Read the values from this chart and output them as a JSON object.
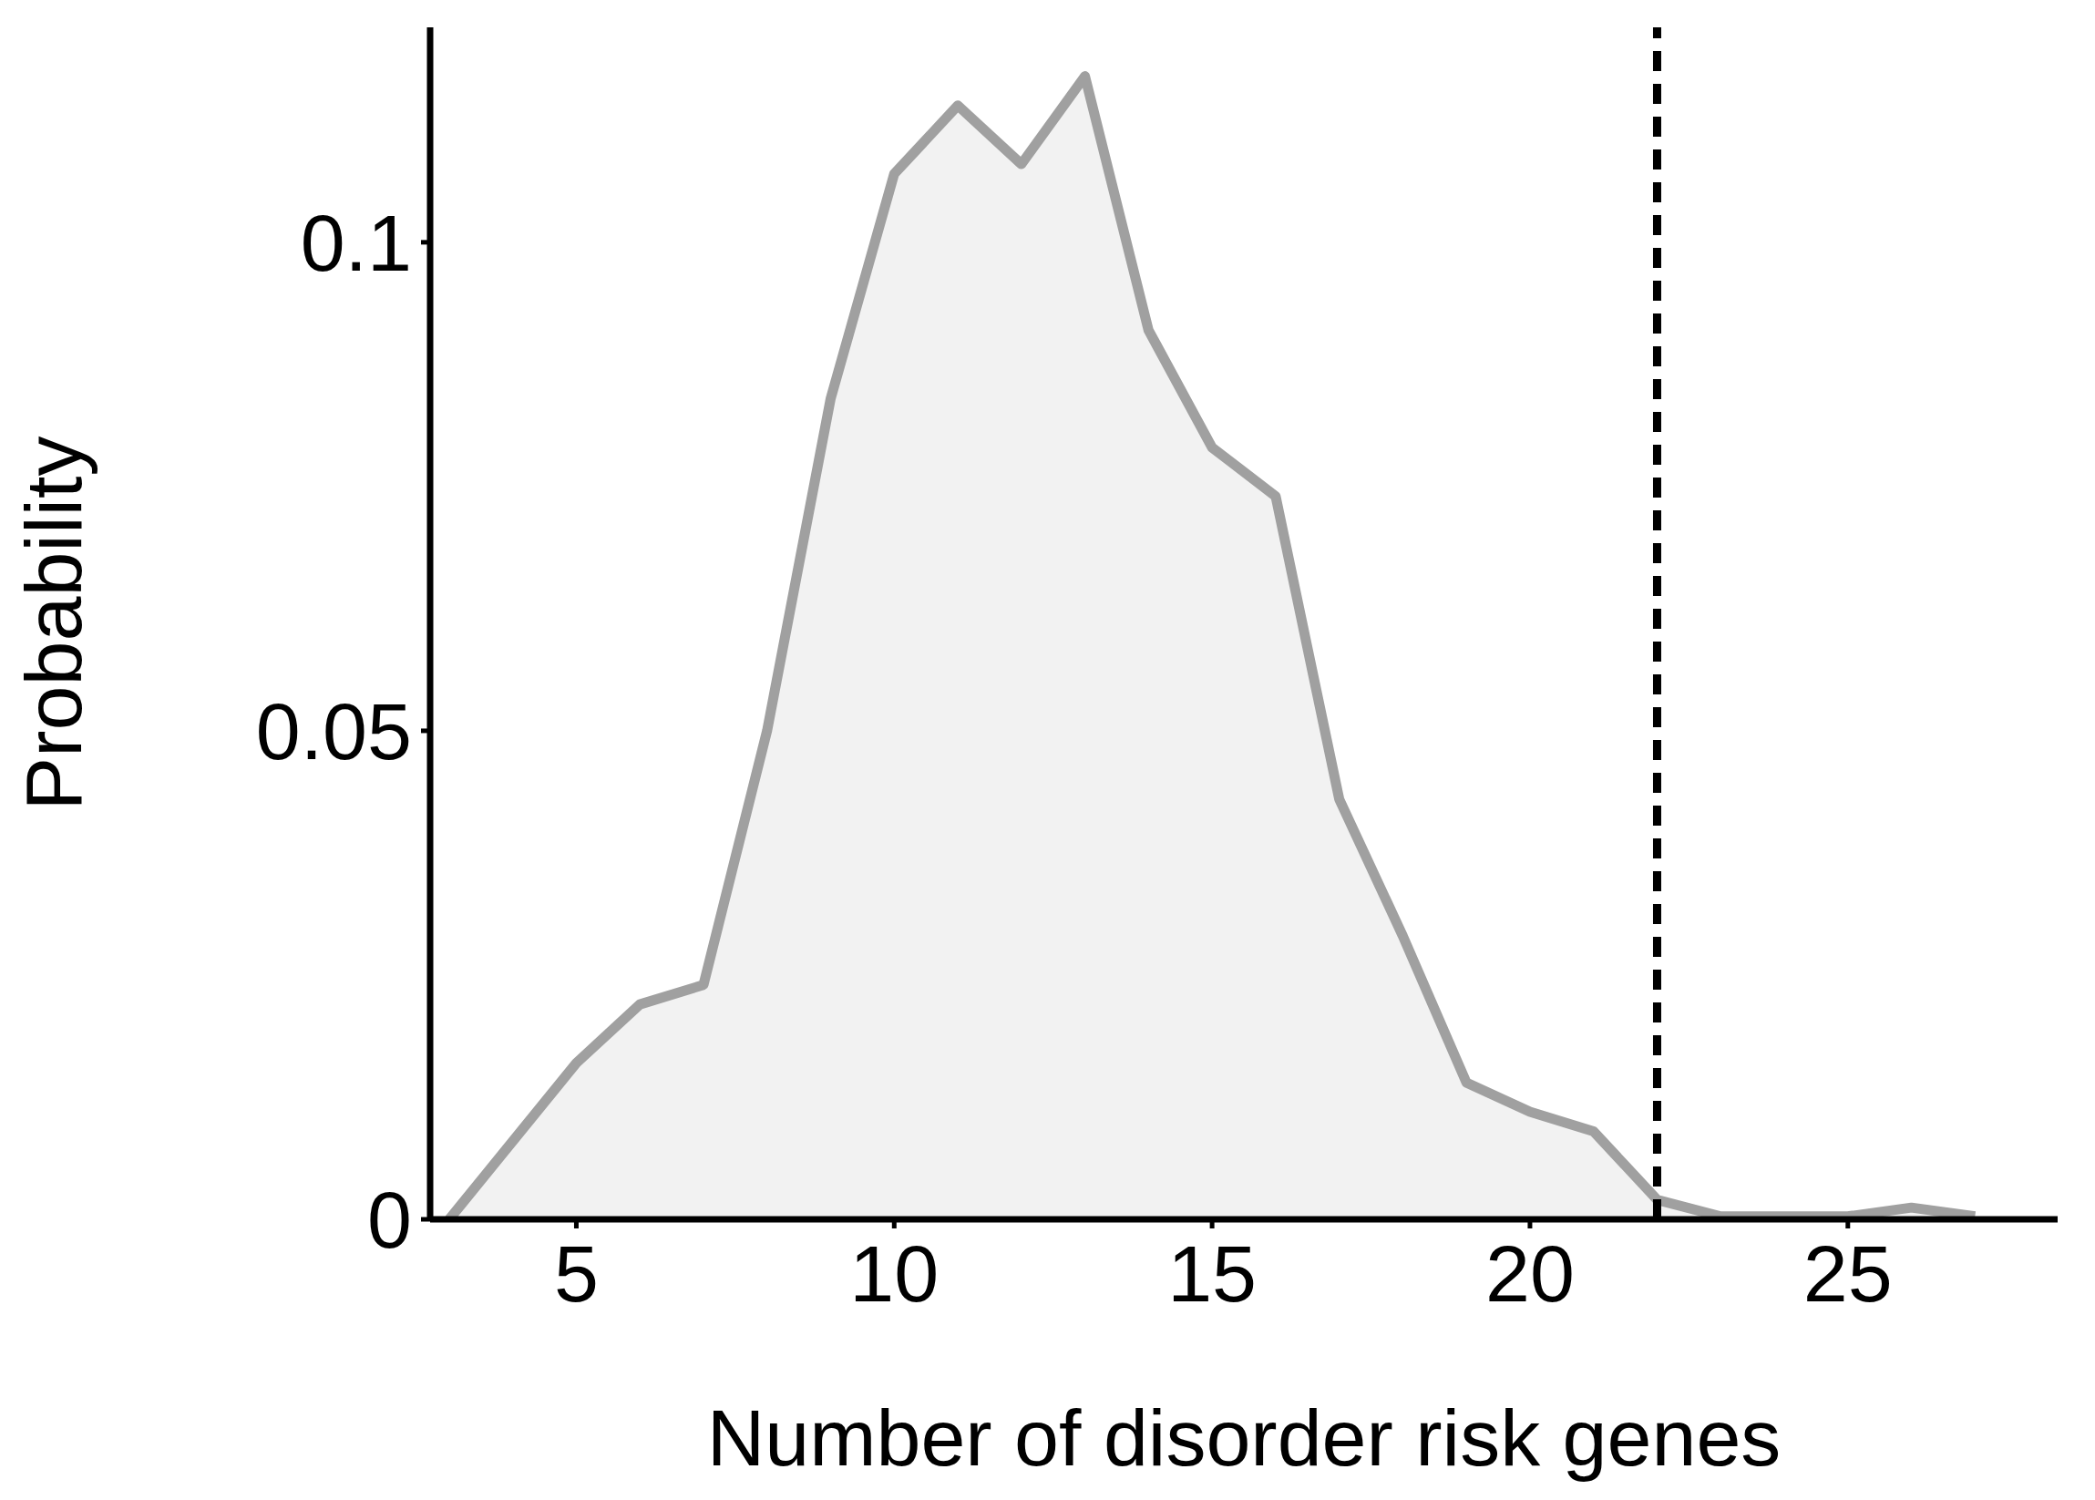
{
  "chart_data": {
    "type": "area",
    "xlabel": "Number of disorder risk genes",
    "ylabel": "Probability",
    "x": [
      3,
      4,
      5,
      6,
      7,
      8,
      9,
      10,
      11,
      12,
      13,
      14,
      15,
      16,
      17,
      18,
      19,
      20,
      21,
      22,
      23,
      24,
      25,
      26,
      27
    ],
    "series": [
      {
        "color": "#a0a0a0",
        "values": [
          0,
          0.008,
          0.016,
          0.022,
          0.024,
          0.05,
          0.084,
          0.107,
          0.114,
          0.108,
          0.117,
          0.091,
          0.079,
          0.074,
          0.043,
          0.029,
          0.014,
          0.011,
          0.009,
          0.002,
          0.0003,
          0.0003,
          0.0003,
          0.0012,
          0.0003
        ]
      }
    ],
    "xlim": [
      2.7,
      28.3
    ],
    "xticks": [
      5,
      10,
      15,
      20,
      25
    ],
    "ylim": [
      0,
      0.122
    ],
    "yticks": [
      0,
      0.05,
      0.1
    ],
    "ref_lines": [
      {
        "axis": "x",
        "value": 22,
        "color": "#000000",
        "line_style": "dashed"
      }
    ]
  }
}
